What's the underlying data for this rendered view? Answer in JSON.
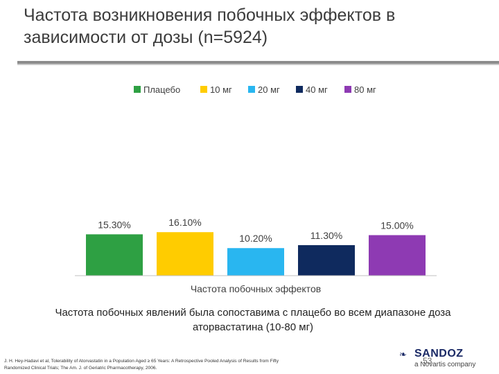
{
  "slide": {
    "title": "Частота возникновения побочных эффектов в зависимости от дозы (n=5924)",
    "conclusion": "Частота побочных явлений была сопоставима с плацебо во всем диапазоне доза аторвастатина (10-80 мг)",
    "footnote": "J. H. Hey-Hadavi et al, Tolerability of Atorvastatin in a Population Aged ≥ 65 Years: A Retrospective Pooled Analysis of Results from Fifty Randomized Clinical Trials; The Am. J. of Geriatric Pharmacotherapy, 2006.",
    "page_number": "53",
    "logo": {
      "name": "SANDOZ",
      "tagline": "a Novartis company",
      "icon": "sandoz-logo-icon"
    }
  },
  "chart_data": {
    "type": "bar",
    "title": "",
    "xlabel": "Частота побочных эффектов",
    "ylabel": "",
    "ylim": [
      0,
      100
    ],
    "legend_position": "top",
    "grid": false,
    "series": [
      {
        "name": "Плацебо",
        "values": [
          15.3
        ],
        "label": "15.30%",
        "color": "#2ea043"
      },
      {
        "name": "10 мг",
        "values": [
          16.1
        ],
        "label": "16.10%",
        "color": "#ffcc00"
      },
      {
        "name": "20 мг",
        "values": [
          10.2
        ],
        "label": "10.20%",
        "color": "#29b6f0"
      },
      {
        "name": "40 мг",
        "values": [
          11.3
        ],
        "label": "11.30%",
        "color": "#0f2a5e"
      },
      {
        "name": "80 мг",
        "values": [
          15.0
        ],
        "label": "15.00%",
        "color": "#8e3ab3"
      }
    ]
  }
}
